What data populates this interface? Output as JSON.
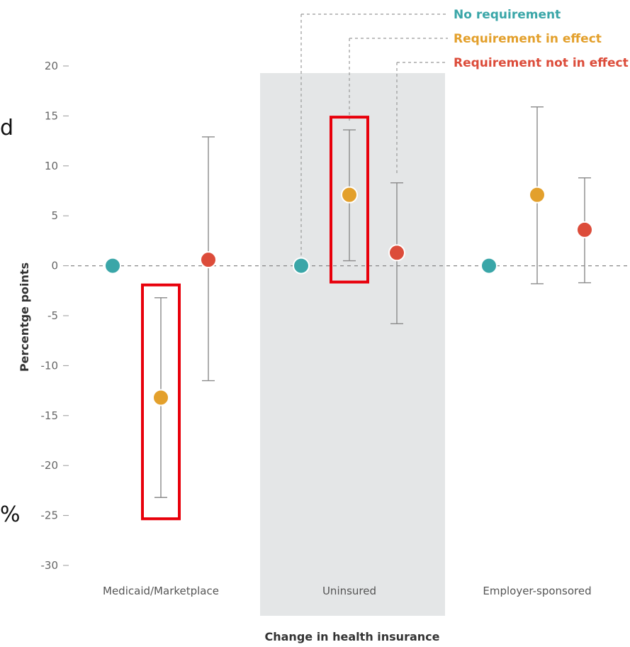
{
  "chart_data": {
    "type": "scatter",
    "title": "",
    "xlabel": "Change in health insurance",
    "ylabel": "Percentge points",
    "ylim": [
      -30,
      20
    ],
    "yticks": [
      20,
      15,
      10,
      5,
      0,
      -5,
      -10,
      -15,
      -20,
      -25,
      -30
    ],
    "categories": [
      "Medicaid/Marketplace",
      "Uninsured",
      "Employer-sponsored"
    ],
    "highlighted_category": "Uninsured",
    "legend_placement": "top-right",
    "series": [
      {
        "name": "No requirement",
        "color": "#3aa6a8",
        "values": [
          0,
          0,
          0
        ],
        "ci_low": [
          null,
          null,
          null
        ],
        "ci_high": [
          null,
          null,
          null
        ]
      },
      {
        "name": "Requirement in effect",
        "color": "#e3a02c",
        "values": [
          -13.2,
          7.1,
          7.1
        ],
        "ci_low": [
          -23.2,
          0.5,
          -1.8
        ],
        "ci_high": [
          -3.2,
          13.6,
          15.9
        ]
      },
      {
        "name": "Requirement not in effect",
        "color": "#dc4c3a",
        "values": [
          0.6,
          1.3,
          3.6
        ],
        "ci_low": [
          -11.5,
          -5.8,
          -1.7
        ],
        "ci_high": [
          12.9,
          8.3,
          8.8
        ]
      }
    ],
    "annotations": [
      {
        "type": "highlight-box",
        "category": "Medicaid/Marketplace",
        "series": "Requirement in effect",
        "color": "#e8000b"
      },
      {
        "type": "highlight-box",
        "category": "Uninsured",
        "series": "Requirement in effect",
        "color": "#e8000b"
      }
    ]
  },
  "edge_text": {
    "top": "d",
    "bottom": "%"
  }
}
